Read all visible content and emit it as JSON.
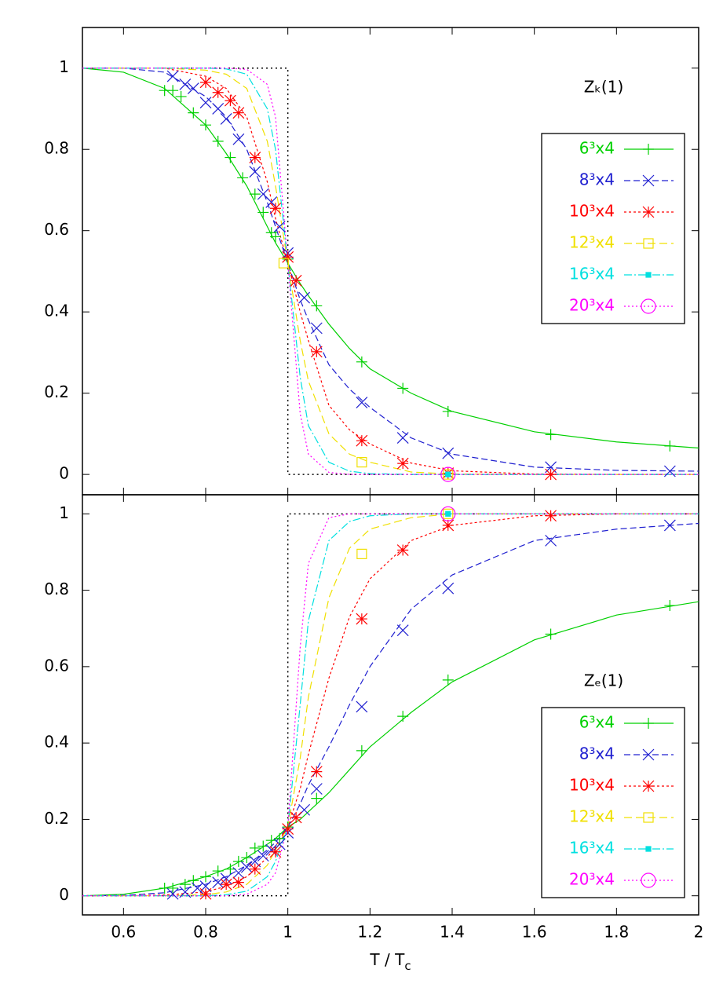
{
  "chart_data": [
    {
      "type": "line",
      "annotation": "Zₖ(1)",
      "xlim": [
        0.5,
        2
      ],
      "xticks": [
        0.6,
        0.8,
        1,
        1.2,
        1.4,
        1.6,
        1.8,
        2
      ],
      "ylim": [
        -0.05,
        1.1
      ],
      "yticks": [
        0,
        0.2,
        0.4,
        0.6,
        0.8,
        1
      ],
      "legend": "upper right",
      "curve_x": [
        0.5,
        0.6,
        0.7,
        0.8,
        0.85,
        0.9,
        0.95,
        0.97,
        1.0,
        1.03,
        1.05,
        1.1,
        1.15,
        1.2,
        1.3,
        1.4,
        1.6,
        1.8,
        2.0
      ],
      "step": {
        "x": [
          0.5,
          1,
          1,
          2
        ],
        "values": [
          1,
          1,
          0,
          0
        ],
        "color": "#000000"
      },
      "series": [
        {
          "name": "6³x4",
          "color": "#00d000",
          "dash": "none",
          "marker": "plus",
          "values": [
            1.0,
            0.99,
            0.95,
            0.86,
            0.79,
            0.71,
            0.61,
            0.57,
            0.52,
            0.47,
            0.44,
            0.37,
            0.31,
            0.26,
            0.2,
            0.155,
            0.105,
            0.08,
            0.065
          ],
          "points_x": [
            0.7,
            0.72,
            0.74,
            0.77,
            0.8,
            0.83,
            0.86,
            0.89,
            0.92,
            0.94,
            0.96,
            0.97,
            1.0,
            1.07,
            1.18,
            1.28,
            1.39,
            1.64,
            1.93
          ],
          "points": [
            0.945,
            0.945,
            0.93,
            0.89,
            0.86,
            0.82,
            0.78,
            0.73,
            0.69,
            0.645,
            0.595,
            0.585,
            0.53,
            0.415,
            0.277,
            0.212,
            0.155,
            0.098,
            0.07
          ]
        },
        {
          "name": "8³x4",
          "color": "#2020d0",
          "dash": "8,4",
          "marker": "x",
          "values": [
            1.0,
            1.0,
            0.99,
            0.93,
            0.88,
            0.8,
            0.67,
            0.61,
            0.52,
            0.43,
            0.38,
            0.27,
            0.21,
            0.165,
            0.09,
            0.05,
            0.018,
            0.01,
            0.008
          ],
          "points_x": [
            0.72,
            0.75,
            0.77,
            0.8,
            0.83,
            0.85,
            0.88,
            0.92,
            0.94,
            0.96,
            0.98,
            1.0,
            1.04,
            1.07,
            1.18,
            1.28,
            1.39,
            1.64,
            1.93
          ],
          "points": [
            0.98,
            0.96,
            0.95,
            0.915,
            0.9,
            0.875,
            0.825,
            0.745,
            0.69,
            0.67,
            0.61,
            0.545,
            0.435,
            0.36,
            0.177,
            0.09,
            0.052,
            0.018,
            0.008
          ]
        },
        {
          "name": "10³x4",
          "color": "#ff0000",
          "dash": "3,3",
          "marker": "star",
          "values": [
            1,
            1,
            1,
            0.98,
            0.95,
            0.88,
            0.72,
            0.63,
            0.52,
            0.4,
            0.33,
            0.17,
            0.11,
            0.075,
            0.028,
            0.009,
            0.001,
            0,
            0
          ],
          "points_x": [
            0.8,
            0.83,
            0.86,
            0.88,
            0.92,
            0.97,
            1.0,
            1.02,
            1.07,
            1.18,
            1.28,
            1.39,
            1.64
          ],
          "points": [
            0.965,
            0.94,
            0.92,
            0.89,
            0.78,
            0.655,
            0.535,
            0.477,
            0.302,
            0.083,
            0.027,
            0.003,
            0
          ]
        },
        {
          "name": "12³x4",
          "color": "#f0e000",
          "dash": "10,5",
          "marker": "square",
          "values": [
            1,
            1,
            1,
            0.995,
            0.985,
            0.95,
            0.82,
            0.71,
            0.52,
            0.33,
            0.23,
            0.1,
            0.05,
            0.03,
            0.006,
            0.001,
            0,
            0,
            0
          ],
          "points_x": [
            0.99,
            1.18,
            1.39
          ],
          "points": [
            0.52,
            0.03,
            0
          ]
        },
        {
          "name": "16³x4",
          "color": "#00e0e0",
          "dash": "10,3,2,3",
          "marker": "filled-square",
          "values": [
            1,
            1,
            1,
            1,
            0.998,
            0.985,
            0.9,
            0.8,
            0.52,
            0.24,
            0.12,
            0.03,
            0.008,
            0.002,
            0,
            0,
            0,
            0,
            0
          ],
          "points_x": [
            1.39
          ],
          "points": [
            0
          ]
        },
        {
          "name": "20³x4",
          "color": "#ff00ff",
          "dash": "2,3",
          "marker": "circle",
          "values": [
            1,
            1,
            1,
            1,
            1,
            0.997,
            0.96,
            0.88,
            0.52,
            0.15,
            0.05,
            0.005,
            0,
            0,
            0,
            0,
            0,
            0,
            0
          ],
          "points_x": [
            1.39
          ],
          "points": [
            0
          ]
        }
      ]
    },
    {
      "type": "line",
      "annotation": "Zₑ(1)",
      "xlabel": [
        "T / T",
        "c"
      ],
      "xlim": [
        0.5,
        2
      ],
      "xticks": [
        0.6,
        0.8,
        1,
        1.2,
        1.4,
        1.6,
        1.8,
        2
      ],
      "ylim": [
        -0.05,
        1.05
      ],
      "yticks": [
        0,
        0.2,
        0.4,
        0.6,
        0.8,
        1
      ],
      "legend": "lower right",
      "curve_x": [
        0.5,
        0.6,
        0.7,
        0.8,
        0.85,
        0.9,
        0.95,
        0.97,
        1.0,
        1.03,
        1.05,
        1.1,
        1.15,
        1.2,
        1.3,
        1.4,
        1.6,
        1.8,
        2.0
      ],
      "step": {
        "x": [
          0.5,
          1,
          1,
          2
        ],
        "values": [
          0,
          0,
          1,
          1
        ],
        "color": "#000000"
      },
      "series": [
        {
          "name": "6³x4",
          "color": "#00d000",
          "dash": "none",
          "marker": "plus",
          "values": [
            0.0,
            0.004,
            0.02,
            0.05,
            0.07,
            0.1,
            0.135,
            0.15,
            0.18,
            0.2,
            0.22,
            0.27,
            0.33,
            0.39,
            0.48,
            0.56,
            0.67,
            0.735,
            0.77
          ],
          "points_x": [
            0.7,
            0.72,
            0.75,
            0.77,
            0.8,
            0.83,
            0.86,
            0.88,
            0.9,
            0.92,
            0.94,
            0.96,
            0.98,
            1.0,
            1.07,
            1.18,
            1.28,
            1.39,
            1.64,
            1.93
          ],
          "points": [
            0.02,
            0.02,
            0.03,
            0.04,
            0.05,
            0.065,
            0.07,
            0.09,
            0.1,
            0.125,
            0.13,
            0.145,
            0.15,
            0.18,
            0.255,
            0.38,
            0.47,
            0.565,
            0.685,
            0.76
          ]
        },
        {
          "name": "8³x4",
          "color": "#2020d0",
          "dash": "8,4",
          "marker": "x",
          "values": [
            0,
            0.001,
            0.008,
            0.03,
            0.05,
            0.08,
            0.12,
            0.14,
            0.18,
            0.24,
            0.29,
            0.39,
            0.5,
            0.6,
            0.75,
            0.84,
            0.93,
            0.96,
            0.975
          ],
          "points_x": [
            0.72,
            0.75,
            0.78,
            0.8,
            0.83,
            0.85,
            0.88,
            0.9,
            0.92,
            0.94,
            0.96,
            0.98,
            1.0,
            1.04,
            1.07,
            1.18,
            1.28,
            1.39,
            1.64,
            1.93
          ],
          "points": [
            0.005,
            0.01,
            0.02,
            0.025,
            0.035,
            0.045,
            0.06,
            0.075,
            0.09,
            0.105,
            0.12,
            0.135,
            0.165,
            0.225,
            0.28,
            0.495,
            0.695,
            0.805,
            0.93,
            0.97
          ]
        },
        {
          "name": "10³x4",
          "color": "#ff0000",
          "dash": "3,3",
          "marker": "star",
          "values": [
            0,
            0,
            0.002,
            0.01,
            0.025,
            0.05,
            0.1,
            0.13,
            0.18,
            0.28,
            0.37,
            0.57,
            0.73,
            0.83,
            0.93,
            0.97,
            0.995,
            1,
            1
          ],
          "points_x": [
            0.8,
            0.85,
            0.88,
            0.92,
            0.97,
            1.0,
            1.02,
            1.07,
            1.18,
            1.28,
            1.39,
            1.64
          ],
          "points": [
            0.005,
            0.03,
            0.035,
            0.07,
            0.115,
            0.175,
            0.205,
            0.325,
            0.725,
            0.905,
            0.97,
            0.995
          ]
        },
        {
          "name": "12³x4",
          "color": "#f0e000",
          "dash": "10,5",
          "marker": "square",
          "values": [
            0,
            0,
            0,
            0.003,
            0.01,
            0.03,
            0.08,
            0.12,
            0.18,
            0.36,
            0.52,
            0.78,
            0.91,
            0.96,
            0.99,
            1,
            1,
            1,
            1
          ],
          "points_x": [
            1.18,
            1.39
          ],
          "points": [
            0.895,
            1.0
          ]
        },
        {
          "name": "16³x4",
          "color": "#00e0e0",
          "dash": "10,3,2,3",
          "marker": "filled-square",
          "values": [
            0,
            0,
            0,
            0,
            0.003,
            0.012,
            0.05,
            0.09,
            0.18,
            0.5,
            0.72,
            0.93,
            0.98,
            0.995,
            1,
            1,
            1,
            1,
            1
          ],
          "points_x": [
            1.39
          ],
          "points": [
            1.0
          ]
        },
        {
          "name": "20³x4",
          "color": "#ff00ff",
          "dash": "2,3",
          "marker": "circle",
          "values": [
            0,
            0,
            0,
            0,
            0,
            0.004,
            0.03,
            0.06,
            0.18,
            0.65,
            0.87,
            0.99,
            1,
            1,
            1,
            1,
            1,
            1,
            1
          ],
          "points_x": [
            1.39
          ],
          "points": [
            1.0
          ]
        }
      ]
    }
  ]
}
